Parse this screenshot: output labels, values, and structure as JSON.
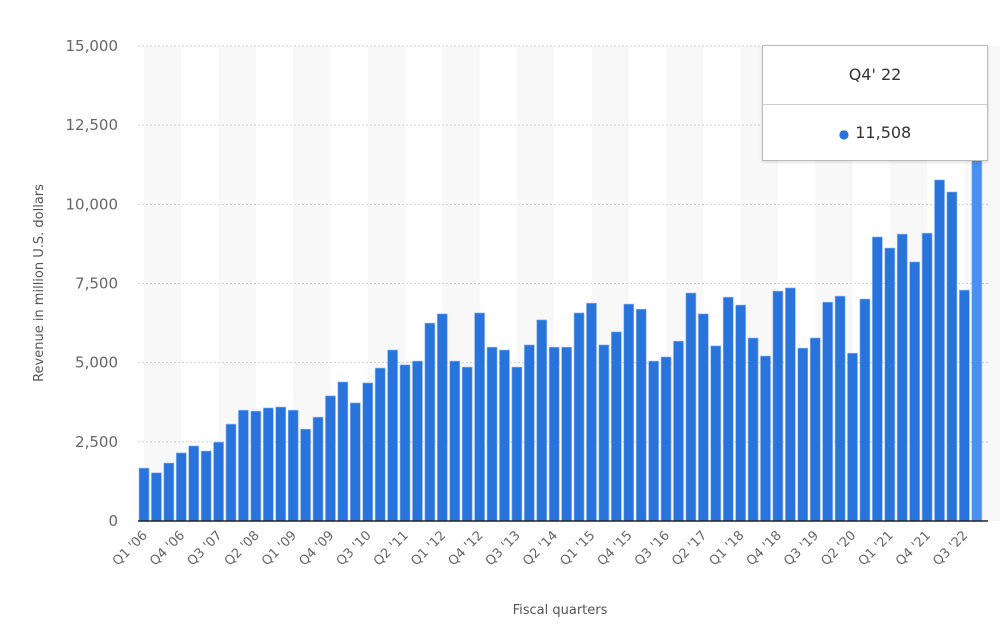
{
  "chart_data": {
    "type": "bar",
    "title": "",
    "xlabel": "Fiscal quarters",
    "ylabel": "Revenue in million U.S. dollars",
    "ylim": [
      0,
      15000
    ],
    "yticks": [
      "0",
      "2,500",
      "5,000",
      "7,500",
      "10,000",
      "12,500",
      "15,000"
    ],
    "ytick_values": [
      0,
      2500,
      5000,
      7500,
      10000,
      12500,
      15000
    ],
    "grid": true,
    "bar_color": "#2873dc",
    "highlight_color": "#4a90f0",
    "categories": [
      "Q1 '06",
      "Q2 '06",
      "Q3 '06",
      "Q4 '06",
      "Q1 '07",
      "Q2 '07",
      "Q3 '07",
      "Q4 '07",
      "Q1 '08",
      "Q2 '08",
      "Q3 '08",
      "Q4 '08",
      "Q1 '09",
      "Q2 '09",
      "Q3 '09",
      "Q4 '09",
      "Q1 '10",
      "Q2 '10",
      "Q3 '10",
      "Q4 '10",
      "Q1 '11",
      "Q2 '11",
      "Q3 '11",
      "Q4 '11",
      "Q1 '12",
      "Q2 '12",
      "Q3 '12",
      "Q4 '12",
      "Q1 '13",
      "Q2 '13",
      "Q3 '13",
      "Q4 '13",
      "Q1 '14",
      "Q2 '14",
      "Q3 '14",
      "Q4 '14",
      "Q1 '15",
      "Q2 '15",
      "Q3 '15",
      "Q4 '15",
      "Q1 '16",
      "Q2 '16",
      "Q3 '16",
      "Q4 '16",
      "Q1 '17",
      "Q2 '17",
      "Q3 '17",
      "Q4 '17",
      "Q1 '18",
      "Q2 '18",
      "Q3 '18",
      "Q4 '18",
      "Q1 '19",
      "Q2 '19",
      "Q3 '19",
      "Q4 '19",
      "Q1 '20",
      "Q2 '20",
      "Q3 '20",
      "Q4 '20",
      "Q1 '21",
      "Q2 '21",
      "Q3 '21",
      "Q4 '21",
      "Q1 '22",
      "Q2 '22",
      "Q3 '22",
      "Q4 '22"
    ],
    "xtick_labels": [
      "Q1 '06",
      "Q4 '06",
      "Q3 '07",
      "Q2 '08",
      "Q1 '09",
      "Q4 '09",
      "Q3 '10",
      "Q2 '11",
      "Q1 '12",
      "Q4 '12",
      "Q3 '13",
      "Q2 '14",
      "Q1 '15",
      "Q4 '15",
      "Q3 '16",
      "Q2 '17",
      "Q1 '18",
      "Q4 '18",
      "Q3 '19",
      "Q2 '20",
      "Q1 '21",
      "Q4 '21",
      "Q3 '22"
    ],
    "values": [
      1670,
      1520,
      1830,
      2150,
      2370,
      2210,
      2490,
      3060,
      3500,
      3470,
      3570,
      3600,
      3500,
      2900,
      3280,
      3950,
      4390,
      3730,
      4360,
      4830,
      5400,
      4930,
      5050,
      6250,
      6540,
      5050,
      4860,
      6570,
      5490,
      5400,
      4860,
      5560,
      6350,
      5490,
      5490,
      6570,
      6880,
      5560,
      5970,
      6850,
      6690,
      5050,
      5180,
      5680,
      7200,
      6540,
      5530,
      7070,
      6820,
      5780,
      5210,
      7260,
      7360,
      5460,
      5780,
      6910,
      7100,
      5300,
      7010,
      8970,
      8620,
      9060,
      8180,
      9090,
      10770,
      10390,
      7290,
      11508
    ]
  },
  "tooltip": {
    "title": "Q4' 22",
    "value": "11,508"
  }
}
